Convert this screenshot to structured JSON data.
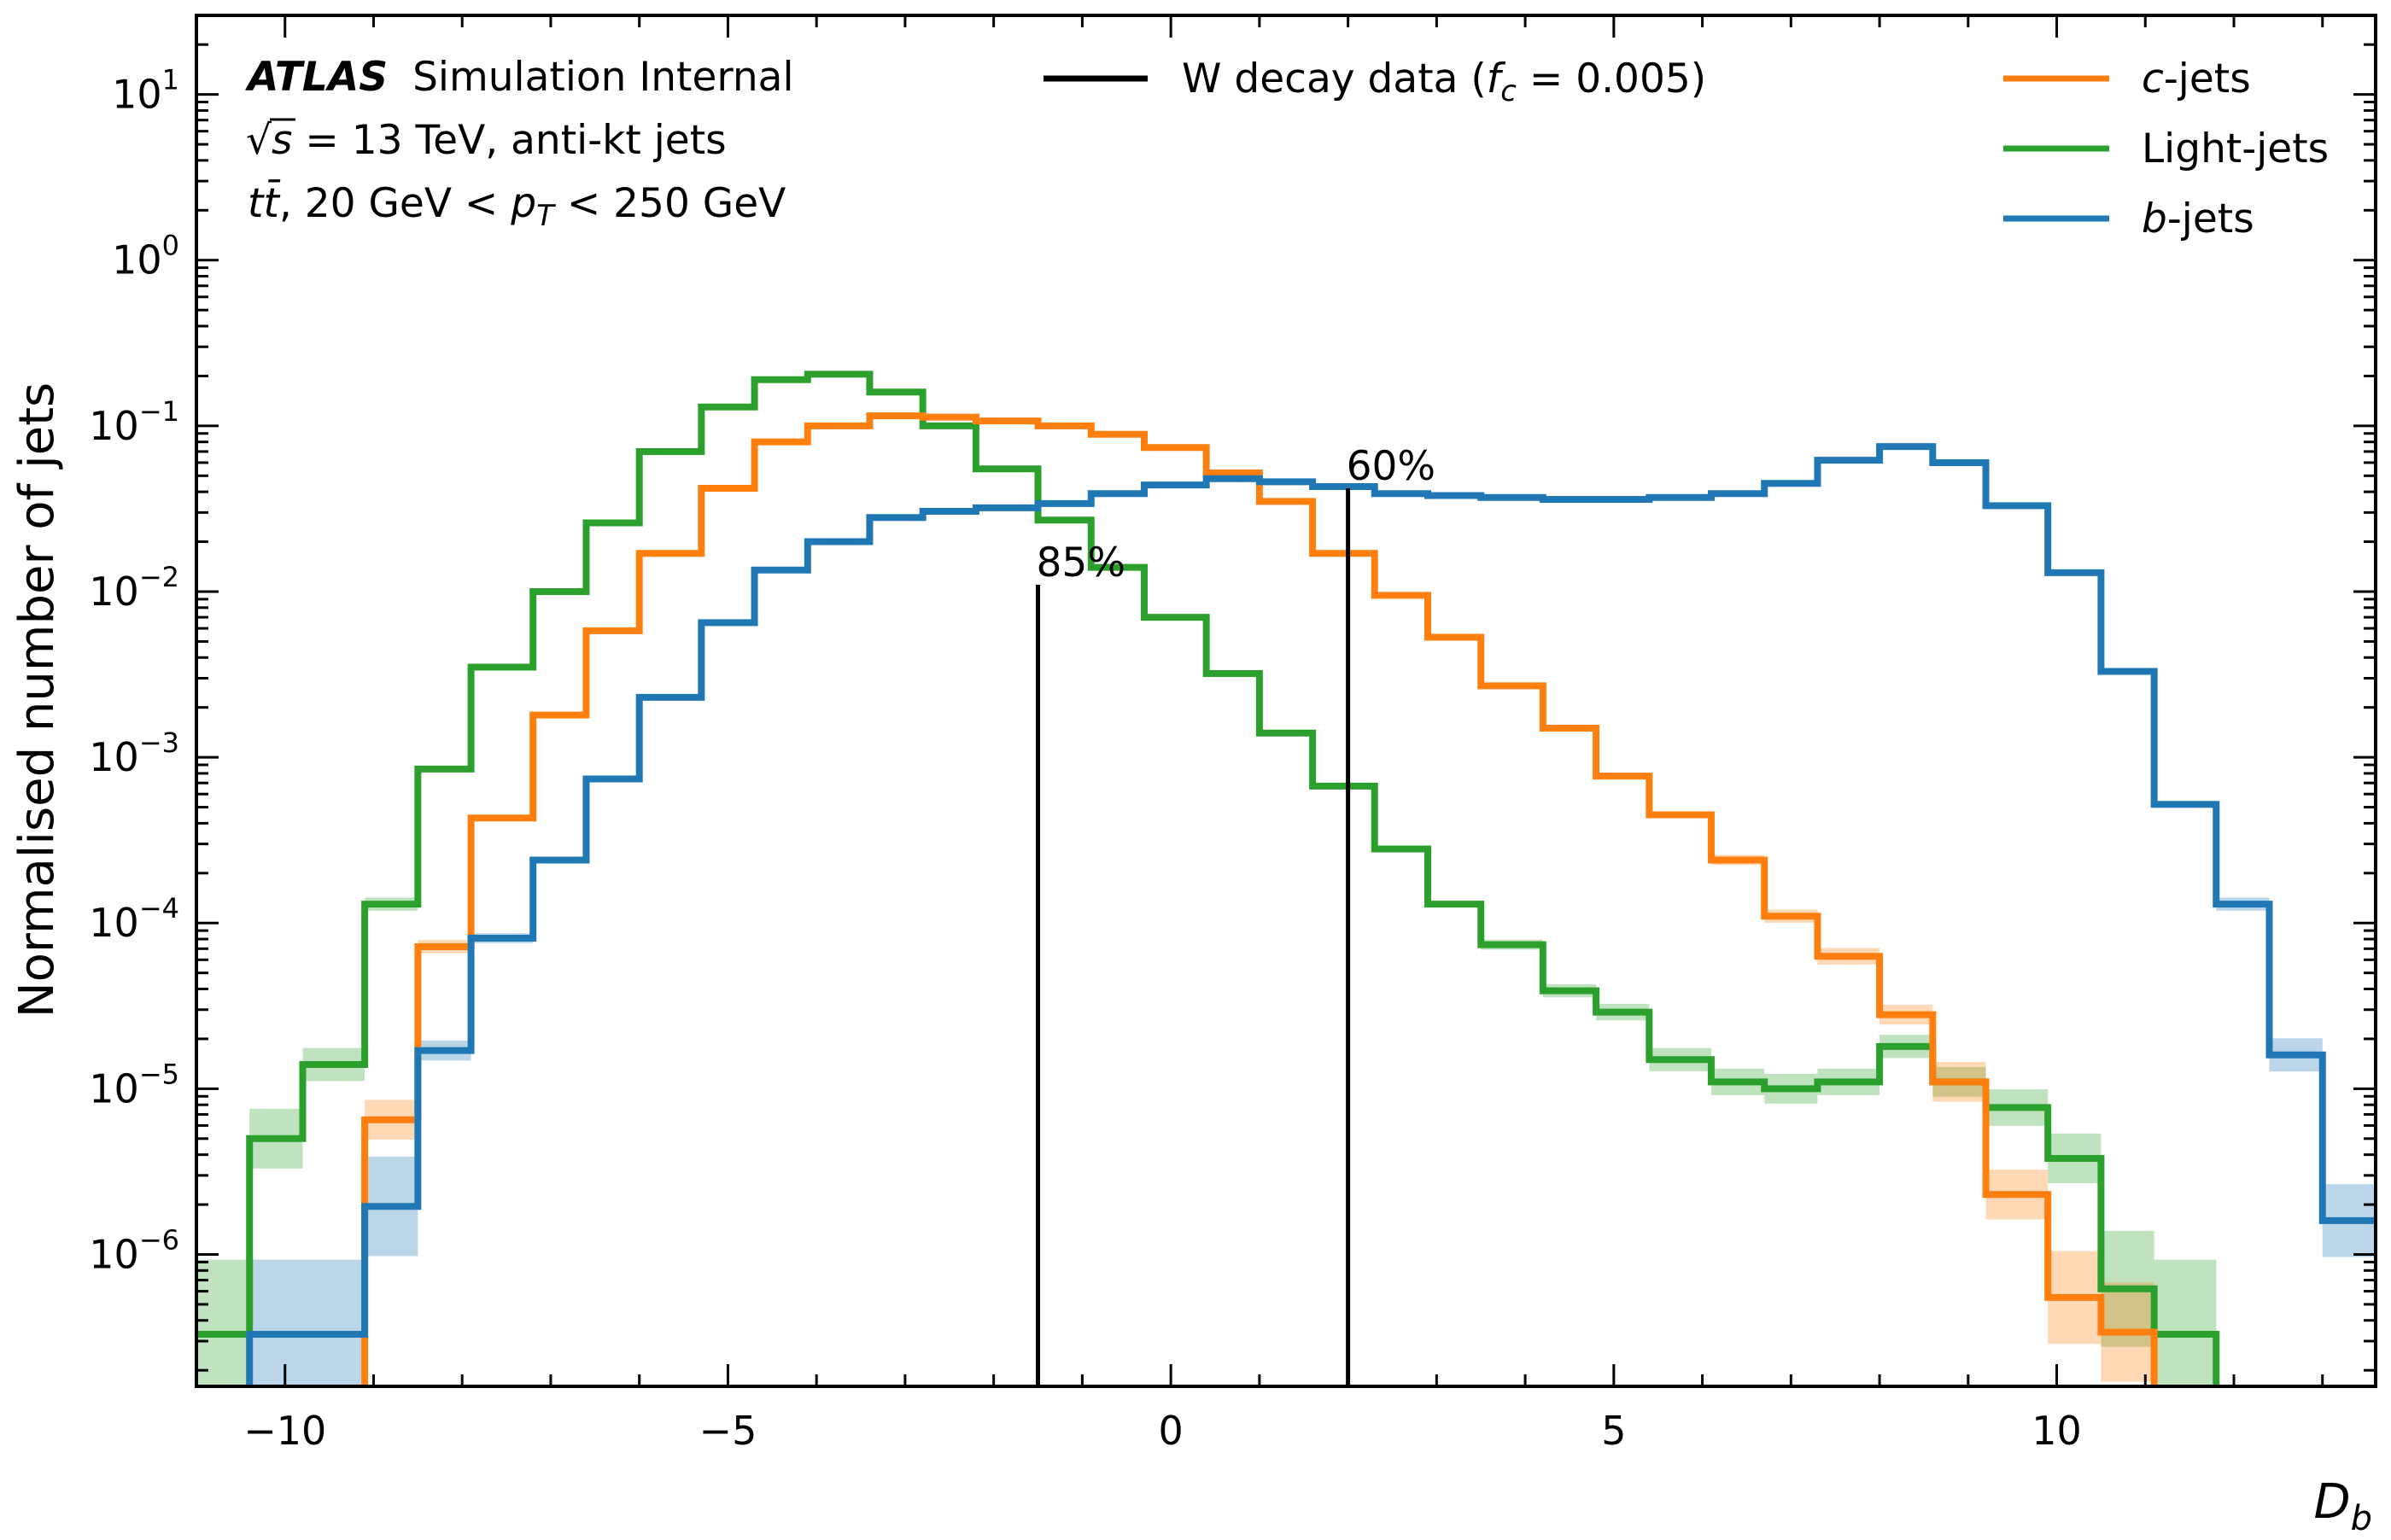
{
  "chart_data": {
    "type": "histogram",
    "x_scale": "linear",
    "y_scale": "log",
    "xlim": [
      -11,
      13.6
    ],
    "ylim": [
      1.6e-07,
      30
    ],
    "xlabel": "D_b",
    "ylabel": "Normalised number of jets",
    "x_ticks": [
      {
        "value": -10,
        "label": "−10"
      },
      {
        "value": -5,
        "label": "−5"
      },
      {
        "value": 0,
        "label": "0"
      },
      {
        "value": 5,
        "label": "5"
      },
      {
        "value": 10,
        "label": "10"
      }
    ],
    "y_ticks": [
      {
        "value": 1e-06,
        "base": "10",
        "exp": "−6"
      },
      {
        "value": 1e-05,
        "base": "10",
        "exp": "−5"
      },
      {
        "value": 0.0001,
        "base": "10",
        "exp": "−4"
      },
      {
        "value": 0.001,
        "base": "10",
        "exp": "−3"
      },
      {
        "value": 0.01,
        "base": "10",
        "exp": "−2"
      },
      {
        "value": 0.1,
        "base": "10",
        "exp": "−1"
      },
      {
        "value": 1,
        "base": "10",
        "exp": "0"
      },
      {
        "value": 10,
        "base": "10",
        "exp": "1"
      }
    ],
    "annotations": {
      "atlas_bold": "ATLAS",
      "atlas_rest": "Simulation Internal",
      "line2_sqrt": "√",
      "line2_s": "s",
      "line2_rest": " = 13 TeV, anti-kt jets",
      "line3_t": "t",
      "line3_tbar": "t̄",
      "line3_mid": ", 20 GeV < ",
      "line3_p": "p",
      "line3_sub": "T",
      "line3_end": " < 250 GeV"
    },
    "legend": {
      "wdecay_text": "W decay data (",
      "wdecay_f": "f",
      "wdecay_sub": "c",
      "wdecay_val": " = 0.005)",
      "entries": [
        {
          "italic": "c",
          "text": "-jets",
          "color": "#ff7f0e"
        },
        {
          "italic": "",
          "text": "Light-jets",
          "color": "#2ca02c"
        },
        {
          "italic": "b",
          "text": "-jets",
          "color": "#1f77b4"
        }
      ]
    },
    "working_points": [
      {
        "x": -1.5,
        "y_top": 0.011,
        "label": "85%"
      },
      {
        "x": 2.0,
        "y_top": 0.042,
        "label": "60%"
      }
    ],
    "bin_edges": [
      -11.0,
      -10.4,
      -9.8,
      -9.1,
      -8.5,
      -7.9,
      -7.2,
      -6.6,
      -6.0,
      -5.3,
      -4.7,
      -4.1,
      -3.4,
      -2.8,
      -2.2,
      -1.5,
      -0.9,
      -0.3,
      0.4,
      1.0,
      1.6,
      2.3,
      2.9,
      3.5,
      4.2,
      4.8,
      5.4,
      6.1,
      6.7,
      7.3,
      8.0,
      8.6,
      9.2,
      9.9,
      10.5,
      11.1,
      11.8,
      12.4,
      13.0,
      13.6
    ],
    "series": [
      {
        "name": "Light-jets",
        "color": "#2ca02c",
        "values": [
          3.3e-07,
          5e-06,
          1.4e-05,
          0.00013,
          0.00085,
          0.0035,
          0.01,
          0.026,
          0.07,
          0.13,
          0.19,
          0.205,
          0.16,
          0.1,
          0.055,
          0.027,
          0.014,
          0.007,
          0.0032,
          0.0014,
          0.00067,
          0.00028,
          0.00013,
          7.4e-05,
          3.9e-05,
          2.9e-05,
          1.5e-05,
          1.1e-05,
          1e-05,
          1.1e-05,
          1.8e-05,
          1.1e-05,
          7.7e-06,
          3.8e-06,
          6.2e-07,
          3.3e-07,
          null,
          null,
          null
        ],
        "unc": [
          0.45,
          0.18,
          0.1,
          0.04,
          0.02,
          0.01,
          0.01,
          0.01,
          0.005,
          0.005,
          0.005,
          0.005,
          0.005,
          0.005,
          0.005,
          0.005,
          0.005,
          0.005,
          0.01,
          0.01,
          0.01,
          0.02,
          0.02,
          0.03,
          0.04,
          0.05,
          0.07,
          0.08,
          0.09,
          0.08,
          0.07,
          0.09,
          0.11,
          0.15,
          0.35,
          0.45,
          null,
          null,
          null
        ]
      },
      {
        "name": "c-jets",
        "color": "#ff7f0e",
        "values": [
          null,
          null,
          null,
          6.5e-06,
          7.2e-05,
          0.00043,
          0.0018,
          0.0058,
          0.017,
          0.042,
          0.08,
          0.1,
          0.115,
          0.113,
          0.107,
          0.1,
          0.089,
          0.074,
          0.052,
          0.035,
          0.017,
          0.0095,
          0.0053,
          0.0027,
          0.0015,
          0.00077,
          0.00045,
          0.00024,
          0.00011,
          6.3e-05,
          2.8e-05,
          1.1e-05,
          2.3e-06,
          5.5e-07,
          3.4e-07,
          null,
          null,
          null,
          null
        ],
        "unc": [
          null,
          null,
          null,
          0.12,
          0.04,
          0.02,
          0.01,
          0.01,
          0.005,
          0.005,
          0.005,
          0.005,
          0.005,
          0.005,
          0.005,
          0.005,
          0.005,
          0.005,
          0.005,
          0.005,
          0.005,
          0.005,
          0.01,
          0.01,
          0.01,
          0.02,
          0.02,
          0.03,
          0.04,
          0.05,
          0.06,
          0.12,
          0.15,
          0.28,
          0.3,
          null,
          null,
          null,
          null
        ]
      },
      {
        "name": "b-jets",
        "color": "#1f77b4",
        "values": [
          null,
          3.3e-07,
          3.3e-07,
          1.95e-06,
          1.7e-05,
          8.1e-05,
          0.00024,
          0.00074,
          0.0023,
          0.0065,
          0.0135,
          0.02,
          0.028,
          0.0305,
          0.032,
          0.034,
          0.039,
          0.044,
          0.048,
          0.046,
          0.043,
          0.039,
          0.038,
          0.037,
          0.036,
          0.036,
          0.037,
          0.039,
          0.045,
          0.062,
          0.075,
          0.06,
          0.033,
          0.013,
          0.0033,
          0.00052,
          0.00013,
          1.6e-05,
          1.6e-06
        ],
        "unc": [
          null,
          0.45,
          0.45,
          0.3,
          0.06,
          0.03,
          0.015,
          0.01,
          0.005,
          0.005,
          0.005,
          0.005,
          0.005,
          0.005,
          0.005,
          0.005,
          0.005,
          0.005,
          0.005,
          0.005,
          0.005,
          0.005,
          0.005,
          0.005,
          0.005,
          0.005,
          0.005,
          0.005,
          0.005,
          0.005,
          0.005,
          0.005,
          0.005,
          0.005,
          0.01,
          0.02,
          0.04,
          0.1,
          0.22
        ]
      }
    ],
    "legend_placement": "top",
    "grid": false
  }
}
